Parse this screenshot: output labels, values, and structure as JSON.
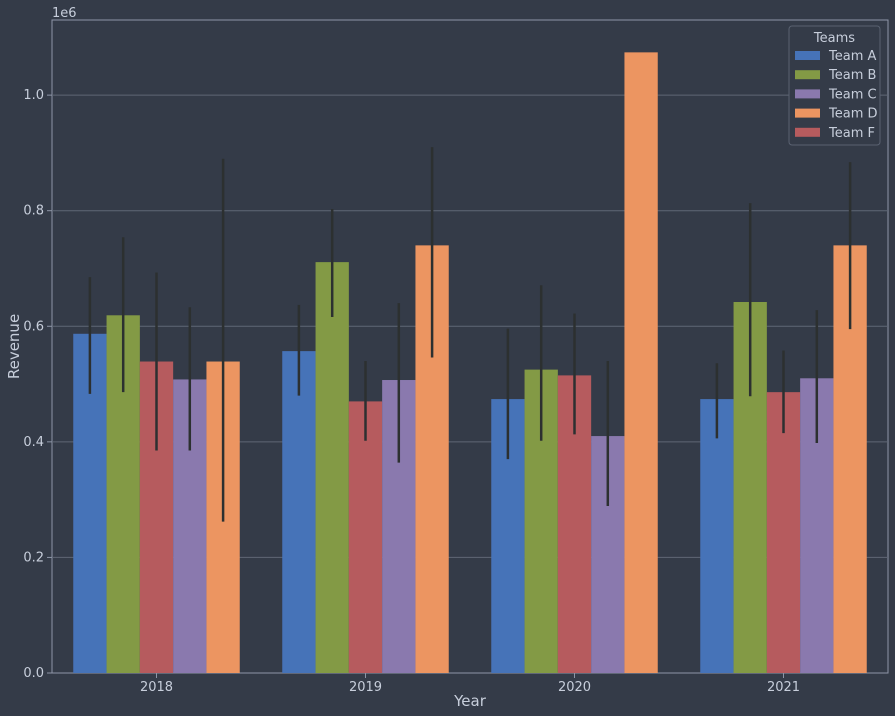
{
  "chart_data": {
    "type": "bar",
    "title": "",
    "xlabel": "Year",
    "ylabel": "Revenue",
    "y_scale_label": "1e6",
    "categories": [
      "2018",
      "2019",
      "2020",
      "2021"
    ],
    "ylim": [
      0.0,
      1.13
    ],
    "yticks": [
      0.0,
      0.2,
      0.4,
      0.6,
      0.8,
      1.0
    ],
    "ytick_labels": [
      "0.0",
      "0.2",
      "0.4",
      "0.6",
      "0.8",
      "1.0"
    ],
    "grid": "horizontal",
    "legend_title": "Teams",
    "legend_position": "top-right",
    "legend_order": [
      "Team A",
      "Team B",
      "Team C",
      "Team D",
      "Team F"
    ],
    "colors": {
      "background": "#343b48",
      "grid": "#5f6775",
      "axis": "#8e96a8",
      "text": "#c7cedb",
      "error": "#2c3030"
    },
    "series_by_year": [
      {
        "year": "2018",
        "bars": [
          {
            "name": "Team A",
            "value": 0.587,
            "err_low": 0.483,
            "err_high": 0.685
          },
          {
            "name": "Team B",
            "value": 0.619,
            "err_low": 0.486,
            "err_high": 0.754
          },
          {
            "name": "Team F",
            "value": 0.539,
            "err_low": 0.385,
            "err_high": 0.693
          },
          {
            "name": "Team C",
            "value": 0.508,
            "err_low": 0.385,
            "err_high": 0.633
          },
          {
            "name": "Team D",
            "value": 0.539,
            "err_low": 0.262,
            "err_high": 0.89
          }
        ]
      },
      {
        "year": "2019",
        "bars": [
          {
            "name": "Team A",
            "value": 0.557,
            "err_low": 0.48,
            "err_high": 0.637
          },
          {
            "name": "Team B",
            "value": 0.711,
            "err_low": 0.616,
            "err_high": 0.803
          },
          {
            "name": "Team F",
            "value": 0.47,
            "err_low": 0.402,
            "err_high": 0.54
          },
          {
            "name": "Team C",
            "value": 0.507,
            "err_low": 0.364,
            "err_high": 0.64
          },
          {
            "name": "Team D",
            "value": 0.74,
            "err_low": 0.546,
            "err_high": 0.91
          }
        ]
      },
      {
        "year": "2020",
        "bars": [
          {
            "name": "Team A",
            "value": 0.474,
            "err_low": 0.37,
            "err_high": 0.596
          },
          {
            "name": "Team B",
            "value": 0.525,
            "err_low": 0.402,
            "err_high": 0.671
          },
          {
            "name": "Team F",
            "value": 0.515,
            "err_low": 0.413,
            "err_high": 0.622
          },
          {
            "name": "Team C",
            "value": 0.41,
            "err_low": 0.289,
            "err_high": 0.54
          },
          {
            "name": "Team D",
            "value": 1.074,
            "err_low": 1.074,
            "err_high": 1.074
          }
        ]
      },
      {
        "year": "2021",
        "bars": [
          {
            "name": "Team A",
            "value": 0.474,
            "err_low": 0.406,
            "err_high": 0.536
          },
          {
            "name": "Team B",
            "value": 0.642,
            "err_low": 0.479,
            "err_high": 0.813
          },
          {
            "name": "Team F",
            "value": 0.486,
            "err_low": 0.415,
            "err_high": 0.558
          },
          {
            "name": "Team C",
            "value": 0.51,
            "err_low": 0.398,
            "err_high": 0.628
          },
          {
            "name": "Team D",
            "value": 0.74,
            "err_low": 0.595,
            "err_high": 0.884
          }
        ]
      }
    ],
    "series_colors": {
      "Team A": "#4673b8",
      "Team B": "#839a45",
      "Team C": "#8a79ae",
      "Team D": "#ec9561",
      "Team F": "#b65b5e"
    }
  }
}
